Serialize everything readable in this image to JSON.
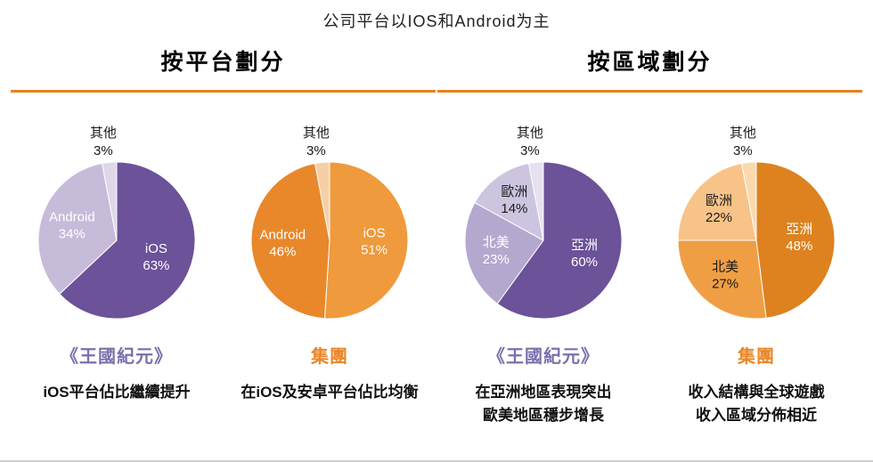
{
  "title": "公司平台以IOS和Android为主",
  "sections": [
    {
      "id": "platform",
      "heading": "按平台劃分",
      "rule_color": "#E8821E"
    },
    {
      "id": "region",
      "heading": "按區域劃分",
      "rule_color": "#E8821E"
    }
  ],
  "accent_colors": {
    "orange": "#E8882A",
    "purple": "#7B6FAD"
  },
  "chart_data": [
    {
      "type": "pie",
      "section": "按平台劃分",
      "entity": "《王國紀元》",
      "entity_color": "#7B6FAD",
      "caption": "iOS平台佔比繼續提升",
      "unit": "%",
      "slices": [
        {
          "label": "iOS",
          "value": 63,
          "color": "#6B5299",
          "text": "#FFFFFF",
          "lr": 0.55
        },
        {
          "label": "Android",
          "value": 34,
          "color": "#C6BCDA",
          "text": "#FFFFFF",
          "lr": 0.6
        },
        {
          "label": "其他",
          "value": 3,
          "color": "#DED7EA",
          "text": "#1A1A1A",
          "outside": true
        }
      ]
    },
    {
      "type": "pie",
      "section": "按平台劃分",
      "entity": "集團",
      "entity_color": "#E8882A",
      "caption": "在iOS及安卓平台佔比均衡",
      "unit": "%",
      "slices": [
        {
          "label": "iOS",
          "value": 51,
          "color": "#EF9A3C",
          "text": "#FFFFFF",
          "lr": 0.57
        },
        {
          "label": "Android",
          "value": 46,
          "color": "#E8882A",
          "text": "#FFFFFF",
          "lr": 0.6
        },
        {
          "label": "其他",
          "value": 3,
          "color": "#F7CFA4",
          "text": "#1A1A1A",
          "outside": true
        }
      ]
    },
    {
      "type": "pie",
      "section": "按區域劃分",
      "entity": "《王國紀元》",
      "entity_color": "#7B6FAD",
      "caption": "在亞洲地區表現突出\n歐美地區穩步增長",
      "unit": "%",
      "slices": [
        {
          "label": "亞洲",
          "value": 60,
          "color": "#6B5299",
          "text": "#FFFFFF",
          "lr": 0.55
        },
        {
          "label": "北美",
          "value": 23,
          "color": "#B4A8CE",
          "text": "#FFFFFF",
          "lr": 0.62
        },
        {
          "label": "歐洲",
          "value": 14,
          "color": "#CDC4DF",
          "text": "#1A1A1A",
          "lr": 0.63
        },
        {
          "label": "其他",
          "value": 3,
          "color": "#E6E1F0",
          "text": "#1A1A1A",
          "outside": true
        }
      ]
    },
    {
      "type": "pie",
      "section": "按區域劃分",
      "entity": "集團",
      "entity_color": "#E8882A",
      "caption": "收入結構與全球遊戲\n收入區域分佈相近",
      "unit": "%",
      "slices": [
        {
          "label": "亞洲",
          "value": 48,
          "color": "#DD821F",
          "text": "#FFFFFF",
          "lr": 0.55
        },
        {
          "label": "北美",
          "value": 27,
          "color": "#F09E43",
          "text": "#1A1A1A",
          "lr": 0.6
        },
        {
          "label": "歐洲",
          "value": 22,
          "color": "#F8C388",
          "text": "#1A1A1A",
          "lr": 0.62
        },
        {
          "label": "其他",
          "value": 3,
          "color": "#FBD9AE",
          "text": "#1A1A1A",
          "outside": true
        }
      ]
    }
  ]
}
